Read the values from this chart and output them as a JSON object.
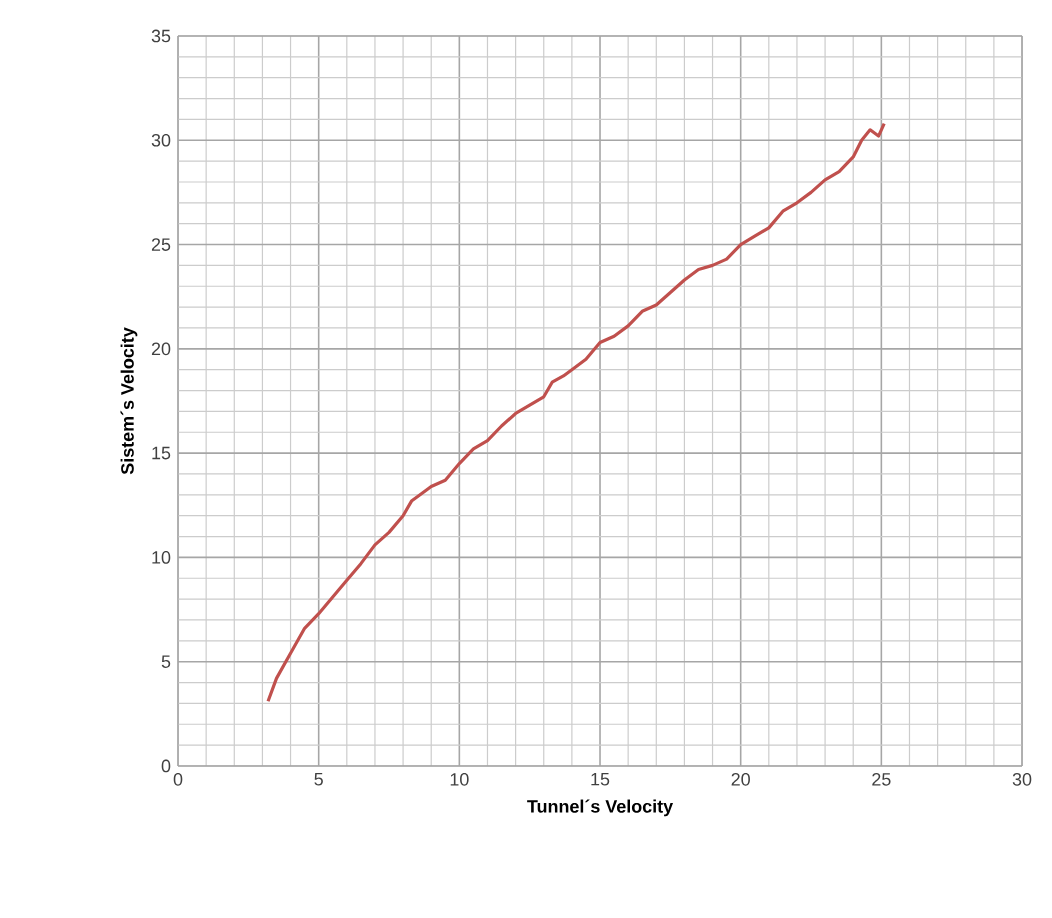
{
  "chart_data": {
    "type": "line",
    "xlabel": "Tunnel´s Velocity",
    "ylabel": "Sistem´s Velocity",
    "xlim": [
      0,
      30
    ],
    "ylim": [
      0,
      35
    ],
    "xticks": [
      0,
      5,
      10,
      15,
      20,
      25,
      30
    ],
    "yticks": [
      0,
      5,
      10,
      15,
      20,
      25,
      30,
      35
    ],
    "grid": true,
    "marker": "none",
    "line_style": "solid",
    "series": [
      {
        "color": "#c0504d",
        "x": [
          3.2,
          3.5,
          4,
          4.5,
          5,
          5.5,
          6,
          6.5,
          7,
          7.5,
          8,
          8.3,
          8.7,
          9,
          9.5,
          10,
          10.5,
          11,
          11.5,
          12,
          12.5,
          13,
          13.3,
          13.7,
          14,
          14.5,
          15,
          15.5,
          16,
          16.5,
          17,
          17.5,
          18,
          18.5,
          19,
          19.5,
          20,
          20.5,
          21,
          21.5,
          22,
          22.5,
          23,
          23.5,
          24,
          24.3,
          24.6,
          24.9,
          25.1
        ],
        "values": [
          3.1,
          4.2,
          5.4,
          6.6,
          7.3,
          8.1,
          8.9,
          9.7,
          10.6,
          11.2,
          12.0,
          12.7,
          13.1,
          13.4,
          13.7,
          14.5,
          15.2,
          15.6,
          16.3,
          16.9,
          17.3,
          17.7,
          18.4,
          18.7,
          19.0,
          19.5,
          20.3,
          20.6,
          21.1,
          21.8,
          22.1,
          22.7,
          23.3,
          23.8,
          24.0,
          24.3,
          25.0,
          25.4,
          25.8,
          26.6,
          27.0,
          27.5,
          28.1,
          28.5,
          29.2,
          30.0,
          30.5,
          30.2,
          30.8
        ]
      }
    ]
  }
}
